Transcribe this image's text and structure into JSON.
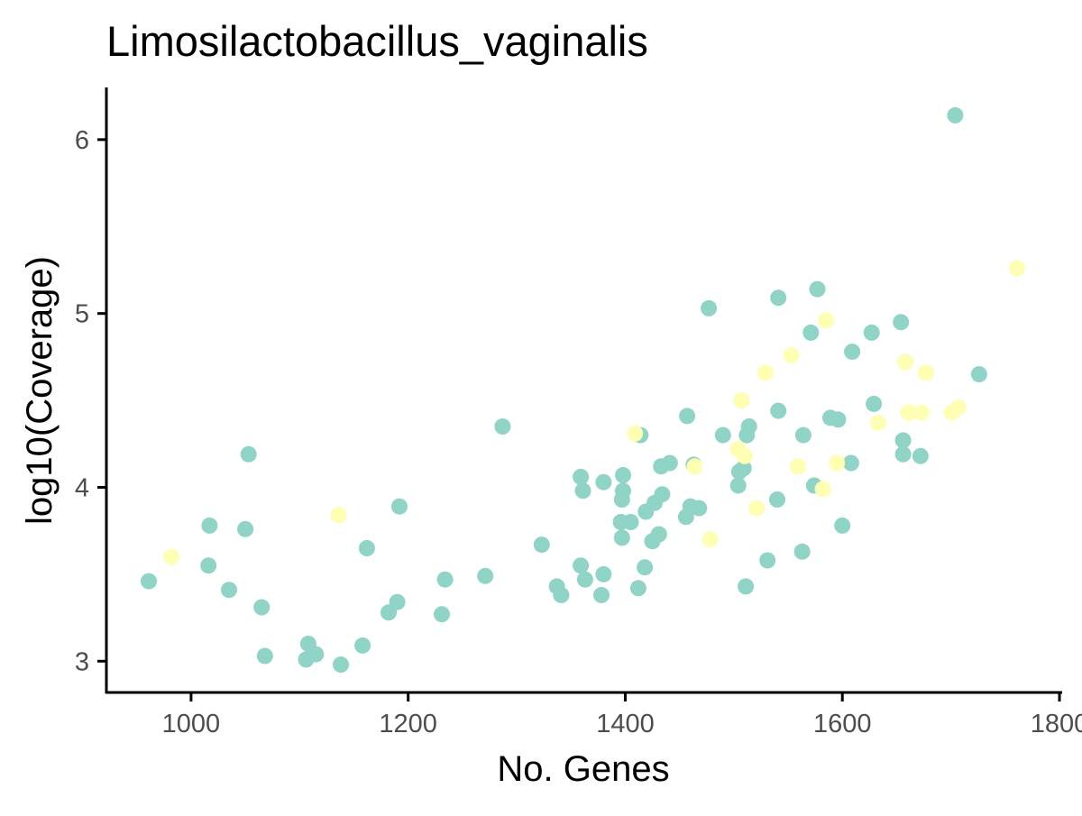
{
  "chart_data": {
    "type": "scatter",
    "title": "Limosilactobacillus_vaginalis",
    "xlabel": "No. Genes",
    "ylabel": "log10(Coverage)",
    "xlim": [
      922,
      1800
    ],
    "ylim": [
      2.82,
      6.3
    ],
    "x_ticks": [
      {
        "value": 1000,
        "label": "1000"
      },
      {
        "value": 1200,
        "label": "1200"
      },
      {
        "value": 1400,
        "label": "1400"
      },
      {
        "value": 1600,
        "label": "1600"
      },
      {
        "value": 1800,
        "label": "1800"
      }
    ],
    "y_ticks": [
      {
        "value": 3,
        "label": "3"
      },
      {
        "value": 4,
        "label": "4"
      },
      {
        "value": 5,
        "label": "5"
      },
      {
        "value": 6,
        "label": "6"
      }
    ],
    "grid": false,
    "legend": "none",
    "colors": {
      "group_a": "#8fd4c6",
      "group_b": "#ffffb3",
      "axis": "#000000",
      "tick_text": "#4d4d4d"
    },
    "series": [
      {
        "color": "#8fd4c6",
        "points": [
          [
            961,
            3.46
          ],
          [
            1016,
            3.55
          ],
          [
            1017,
            3.78
          ],
          [
            1035,
            3.41
          ],
          [
            1050,
            3.76
          ],
          [
            1053,
            4.19
          ],
          [
            1065,
            3.31
          ],
          [
            1068,
            3.03
          ],
          [
            1106,
            3.01
          ],
          [
            1108,
            3.1
          ],
          [
            1115,
            3.04
          ],
          [
            1138,
            2.98
          ],
          [
            1158,
            3.09
          ],
          [
            1162,
            3.65
          ],
          [
            1182,
            3.28
          ],
          [
            1190,
            3.34
          ],
          [
            1192,
            3.89
          ],
          [
            1231,
            3.27
          ],
          [
            1234,
            3.47
          ],
          [
            1271,
            3.49
          ],
          [
            1287,
            4.35
          ],
          [
            1323,
            3.67
          ],
          [
            1337,
            3.43
          ],
          [
            1341,
            3.38
          ],
          [
            1359,
            4.06
          ],
          [
            1359,
            3.55
          ],
          [
            1361,
            3.98
          ],
          [
            1363,
            3.47
          ],
          [
            1378,
            3.38
          ],
          [
            1380,
            4.03
          ],
          [
            1380,
            3.5
          ],
          [
            1396,
            3.8
          ],
          [
            1397,
            3.71
          ],
          [
            1397,
            3.93
          ],
          [
            1398,
            3.98
          ],
          [
            1398,
            4.07
          ],
          [
            1405,
            3.8
          ],
          [
            1412,
            3.42
          ],
          [
            1414,
            4.3
          ],
          [
            1418,
            3.54
          ],
          [
            1419,
            3.86
          ],
          [
            1425,
            3.69
          ],
          [
            1427,
            3.91
          ],
          [
            1431,
            3.73
          ],
          [
            1433,
            4.12
          ],
          [
            1434,
            3.96
          ],
          [
            1441,
            4.14
          ],
          [
            1456,
            3.83
          ],
          [
            1457,
            4.41
          ],
          [
            1460,
            3.89
          ],
          [
            1463,
            4.13
          ],
          [
            1468,
            3.88
          ],
          [
            1477,
            5.03
          ],
          [
            1490,
            4.3
          ],
          [
            1504,
            4.01
          ],
          [
            1505,
            4.09
          ],
          [
            1509,
            4.11
          ],
          [
            1511,
            3.43
          ],
          [
            1512,
            4.3
          ],
          [
            1514,
            4.35
          ],
          [
            1531,
            3.58
          ],
          [
            1540,
            3.93
          ],
          [
            1541,
            5.09
          ],
          [
            1541,
            4.44
          ],
          [
            1563,
            3.63
          ],
          [
            1564,
            4.3
          ],
          [
            1571,
            4.89
          ],
          [
            1574,
            4.01
          ],
          [
            1577,
            5.14
          ],
          [
            1589,
            4.4
          ],
          [
            1596,
            4.39
          ],
          [
            1600,
            3.78
          ],
          [
            1608,
            4.14
          ],
          [
            1609,
            4.78
          ],
          [
            1627,
            4.89
          ],
          [
            1629,
            4.48
          ],
          [
            1654,
            4.95
          ],
          [
            1656,
            4.27
          ],
          [
            1656,
            4.19
          ],
          [
            1672,
            4.18
          ],
          [
            1704,
            6.14
          ],
          [
            1726,
            4.65
          ]
        ]
      },
      {
        "color": "#ffffb3",
        "points": [
          [
            982,
            3.6
          ],
          [
            1136,
            3.84
          ],
          [
            1409,
            4.31
          ],
          [
            1464,
            4.12
          ],
          [
            1478,
            3.7
          ],
          [
            1504,
            4.22
          ],
          [
            1507,
            4.5
          ],
          [
            1510,
            4.18
          ],
          [
            1521,
            3.88
          ],
          [
            1529,
            4.66
          ],
          [
            1553,
            4.76
          ],
          [
            1559,
            4.12
          ],
          [
            1582,
            3.99
          ],
          [
            1585,
            4.96
          ],
          [
            1595,
            4.14
          ],
          [
            1633,
            4.37
          ],
          [
            1658,
            4.72
          ],
          [
            1661,
            4.43
          ],
          [
            1673,
            4.43
          ],
          [
            1677,
            4.66
          ],
          [
            1701,
            4.43
          ],
          [
            1707,
            4.46
          ],
          [
            1761,
            5.26
          ]
        ]
      }
    ]
  }
}
